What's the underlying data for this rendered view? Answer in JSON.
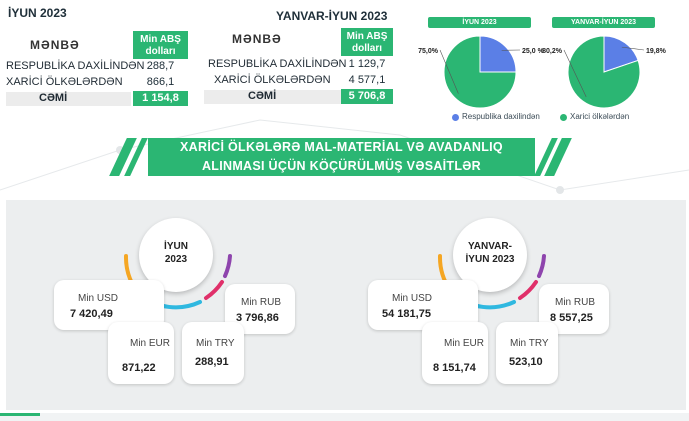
{
  "table_june": {
    "title": "İYUN 2023",
    "source_label": "MƏNBƏ",
    "unit_header": "Min ABŞ dolları",
    "rows": [
      {
        "label": "RESPUBLİKA DAXİLİNDƏN",
        "value": "288,7"
      },
      {
        "label": "XARİCİ ÖLKƏLƏRDƏN",
        "value": "866,1"
      },
      {
        "label": "CƏMİ",
        "value": "1 154,8"
      }
    ]
  },
  "table_jan_june": {
    "title": "YANVAR-İYUN 2023",
    "source_label": "MƏNBƏ",
    "unit_header": "Min ABŞ dolları",
    "rows": [
      {
        "label": "RESPUBLİKA DAXİLİNDƏN",
        "value": "1 129,7"
      },
      {
        "label": "XARİCİ ÖLKƏLƏRDƏN",
        "value": "4 577,1"
      },
      {
        "label": "CƏMİ",
        "value": "5 706,8"
      }
    ]
  },
  "chart_data": [
    {
      "type": "pie",
      "title": "İYUN 2023",
      "categories": [
        "Respublika daxilindən",
        "Xarici ölkələrdən"
      ],
      "values": [
        25.0,
        75.0
      ],
      "labels": [
        "25,0 %",
        "75,0%"
      ],
      "colors": [
        "#5b7fe6",
        "#2bb673"
      ]
    },
    {
      "type": "pie",
      "title": "YANVAR-İYUN 2023",
      "categories": [
        "Respublika daxilindən",
        "Xarici ölkələrdən"
      ],
      "values": [
        19.8,
        80.2
      ],
      "labels": [
        "19,8%",
        "80,2%"
      ],
      "colors": [
        "#5b7fe6",
        "#2bb673"
      ]
    }
  ],
  "legend": [
    {
      "label": "Respublika daxilindən",
      "color": "#5b7fe6"
    },
    {
      "label": "Xarici ölkələrdən",
      "color": "#2bb673"
    }
  ],
  "banner": {
    "line1": "XARİCİ ÖLKƏLƏRƏ MAL-MATERİAL VƏ AVADANLIQ",
    "line2": "ALINMASI ÜÇÜN KÖÇÜRÜLMÜŞ VƏSAİTLƏR"
  },
  "currency_june": {
    "title": "İYUN 2023",
    "usd": {
      "label": "Min USD",
      "value": "7 420,49"
    },
    "eur": {
      "label": "Min EUR",
      "value": "871,22"
    },
    "try": {
      "label": "Min TRY",
      "value": "288,91"
    },
    "rub": {
      "label": "Min RUB",
      "value": "3 796,86"
    }
  },
  "currency_jan_june": {
    "title": "YANVAR-İYUN 2023",
    "usd": {
      "label": "Min USD",
      "value": "54 181,75"
    },
    "eur": {
      "label": "Min EUR",
      "value": "8 151,74"
    },
    "try": {
      "label": "Min TRY",
      "value": "523,10"
    },
    "rub": {
      "label": "Min RUB",
      "value": "8 557,25"
    }
  },
  "colors": {
    "accent": "#2bb673",
    "blue": "#5b7fe6",
    "arc_orange": "#f5a623",
    "arc_cyan": "#2fb8e0",
    "arc_magenta": "#e0306a",
    "arc_purple": "#8e44ad"
  }
}
